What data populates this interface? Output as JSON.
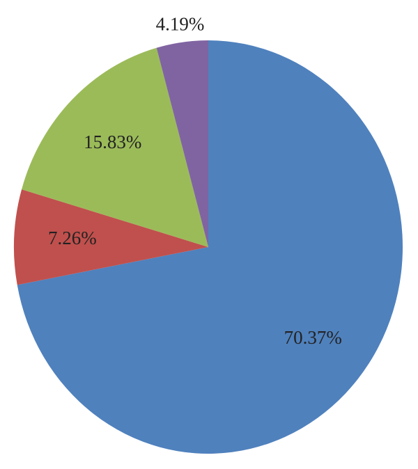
{
  "chart_data": {
    "type": "pie",
    "values": [
      70.37,
      7.26,
      15.83,
      4.19
    ],
    "value_labels": [
      "70.37%",
      "7.26%",
      "15.83%",
      "4.19%"
    ],
    "colors": [
      "#4f81bd",
      "#c0504d",
      "#9bbb59",
      "#8064a2"
    ]
  }
}
